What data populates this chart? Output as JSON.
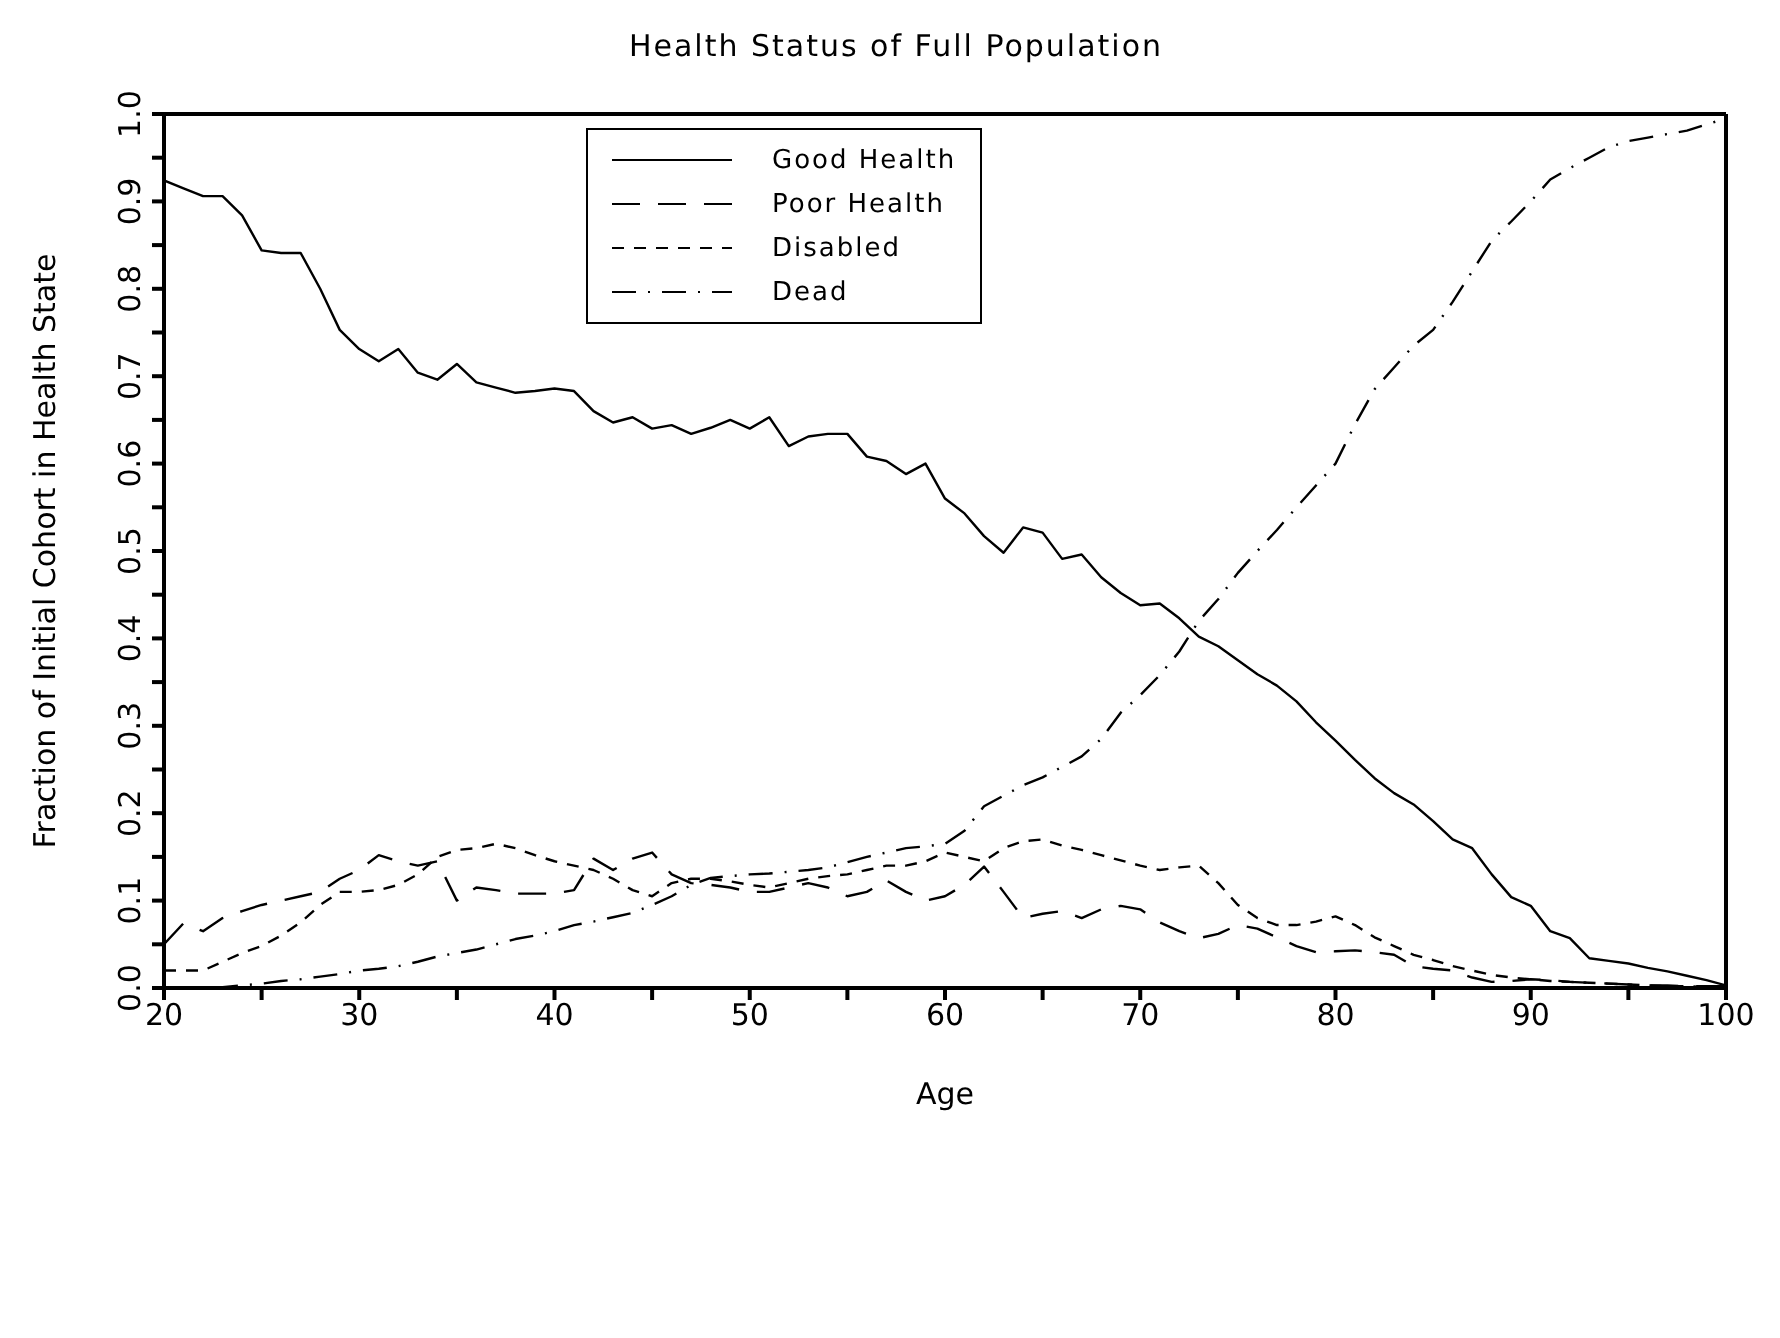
{
  "chart_data": {
    "type": "line",
    "title": "Health Status of Full Population",
    "xlabel": "Age",
    "ylabel": "Fraction of Initial Cohort in Health State",
    "x": [
      20,
      21,
      22,
      23,
      24,
      25,
      26,
      27,
      28,
      29,
      30,
      31,
      32,
      33,
      34,
      35,
      36,
      37,
      38,
      39,
      40,
      41,
      42,
      43,
      44,
      45,
      46,
      47,
      48,
      49,
      50,
      51,
      52,
      53,
      54,
      55,
      56,
      57,
      58,
      59,
      60,
      61,
      62,
      63,
      64,
      65,
      66,
      67,
      68,
      69,
      70,
      71,
      72,
      73,
      74,
      75,
      76,
      77,
      78,
      79,
      80,
      81,
      82,
      83,
      84,
      85,
      86,
      87,
      88,
      89,
      90,
      91,
      92,
      93,
      94,
      95,
      96,
      97,
      98,
      99,
      100
    ],
    "series": [
      {
        "name": "Good Health",
        "color": "#000000",
        "line_style": "solid",
        "values": [
          0.924,
          0.915,
          0.906,
          0.906,
          0.884,
          0.844,
          0.841,
          0.841,
          0.8,
          0.753,
          0.731,
          0.717,
          0.731,
          0.704,
          0.696,
          0.714,
          0.693,
          0.687,
          0.681,
          0.683,
          0.686,
          0.683,
          0.66,
          0.647,
          0.653,
          0.64,
          0.644,
          0.634,
          0.641,
          0.65,
          0.64,
          0.653,
          0.62,
          0.631,
          0.634,
          0.634,
          0.608,
          0.603,
          0.588,
          0.6,
          0.56,
          0.543,
          0.517,
          0.498,
          0.527,
          0.521,
          0.491,
          0.496,
          0.47,
          0.452,
          0.438,
          0.44,
          0.423,
          0.402,
          0.391,
          0.375,
          0.359,
          0.346,
          0.328,
          0.304,
          0.283,
          0.261,
          0.24,
          0.223,
          0.21,
          0.191,
          0.17,
          0.16,
          0.13,
          0.104,
          0.094,
          0.065,
          0.057,
          0.034,
          0.031,
          0.028,
          0.023,
          0.019,
          0.014,
          0.009,
          0.003
        ]
      },
      {
        "name": "Poor Health",
        "color": "#000000",
        "line_style": "longdash",
        "values": [
          0.05,
          0.074,
          0.065,
          0.08,
          0.088,
          0.095,
          0.1,
          0.105,
          0.11,
          0.125,
          0.135,
          0.152,
          0.145,
          0.14,
          0.145,
          0.1,
          0.115,
          0.112,
          0.108,
          0.108,
          0.108,
          0.112,
          0.148,
          0.135,
          0.148,
          0.155,
          0.13,
          0.12,
          0.118,
          0.115,
          0.11,
          0.11,
          0.115,
          0.12,
          0.115,
          0.105,
          0.11,
          0.123,
          0.11,
          0.1,
          0.105,
          0.118,
          0.139,
          0.11,
          0.08,
          0.085,
          0.088,
          0.08,
          0.09,
          0.094,
          0.09,
          0.075,
          0.065,
          0.057,
          0.062,
          0.072,
          0.068,
          0.058,
          0.048,
          0.041,
          0.042,
          0.043,
          0.041,
          0.038,
          0.025,
          0.022,
          0.02,
          0.012,
          0.007,
          0.008,
          0.01,
          0.009,
          0.007,
          0.006,
          0.005,
          0.004,
          0.003,
          0.003,
          0.002,
          0.002,
          0.002
        ]
      },
      {
        "name": "Disabled",
        "color": "#000000",
        "line_style": "dashed",
        "values": [
          0.02,
          0.02,
          0.02,
          0.03,
          0.04,
          0.048,
          0.06,
          0.075,
          0.095,
          0.11,
          0.11,
          0.112,
          0.118,
          0.13,
          0.15,
          0.158,
          0.16,
          0.165,
          0.16,
          0.152,
          0.145,
          0.14,
          0.135,
          0.125,
          0.112,
          0.105,
          0.12,
          0.125,
          0.125,
          0.122,
          0.118,
          0.115,
          0.12,
          0.125,
          0.128,
          0.13,
          0.135,
          0.14,
          0.14,
          0.145,
          0.155,
          0.15,
          0.145,
          0.16,
          0.168,
          0.17,
          0.163,
          0.158,
          0.152,
          0.146,
          0.14,
          0.135,
          0.138,
          0.14,
          0.12,
          0.095,
          0.08,
          0.072,
          0.072,
          0.076,
          0.082,
          0.072,
          0.058,
          0.048,
          0.038,
          0.032,
          0.025,
          0.02,
          0.015,
          0.012,
          0.01,
          0.008,
          0.007,
          0.006,
          0.005,
          0.004,
          0.003,
          0.002,
          0.002,
          0.001,
          0.001
        ]
      },
      {
        "name": "Dead",
        "color": "#000000",
        "line_style": "dashdot",
        "values": [
          0,
          0,
          0,
          0.001,
          0.003,
          0.005,
          0.008,
          0.01,
          0.013,
          0.016,
          0.02,
          0.022,
          0.025,
          0.03,
          0.036,
          0.04,
          0.044,
          0.05,
          0.056,
          0.06,
          0.065,
          0.072,
          0.076,
          0.081,
          0.086,
          0.095,
          0.105,
          0.118,
          0.126,
          0.128,
          0.13,
          0.131,
          0.133,
          0.135,
          0.138,
          0.144,
          0.15,
          0.155,
          0.16,
          0.162,
          0.165,
          0.18,
          0.208,
          0.22,
          0.232,
          0.241,
          0.253,
          0.265,
          0.285,
          0.315,
          0.335,
          0.358,
          0.385,
          0.42,
          0.445,
          0.475,
          0.5,
          0.524,
          0.55,
          0.575,
          0.6,
          0.645,
          0.685,
          0.71,
          0.735,
          0.753,
          0.785,
          0.82,
          0.855,
          0.877,
          0.9,
          0.925,
          0.938,
          0.95,
          0.962,
          0.969,
          0.973,
          0.977,
          0.981,
          0.988,
          0.995
        ]
      }
    ],
    "xlim": [
      20,
      100
    ],
    "xticks": [
      20,
      {
        "value": 25,
        "label": null
      },
      30,
      {
        "value": 35,
        "label": null
      },
      40,
      {
        "value": 45,
        "label": null
      },
      50,
      {
        "value": 55,
        "label": null
      },
      60,
      {
        "value": 65,
        "label": null
      },
      70,
      {
        "value": 75,
        "label": null
      },
      80,
      {
        "value": 85,
        "label": null
      },
      90,
      {
        "value": 95,
        "label": null
      },
      100
    ],
    "ylim": [
      0,
      1
    ],
    "yticks": [
      {
        "value": 0,
        "label": "0.0"
      },
      {
        "value": 0.05,
        "label": null
      },
      {
        "value": 0.1,
        "label": "0.1"
      },
      {
        "value": 0.15,
        "label": null
      },
      {
        "value": 0.2,
        "label": "0.2"
      },
      {
        "value": 0.25,
        "label": null
      },
      {
        "value": 0.3,
        "label": "0.3"
      },
      {
        "value": 0.35,
        "label": null
      },
      {
        "value": 0.4,
        "label": "0.4"
      },
      {
        "value": 0.45,
        "label": null
      },
      {
        "value": 0.5,
        "label": "0.5"
      },
      {
        "value": 0.55,
        "label": null
      },
      {
        "value": 0.6,
        "label": "0.6"
      },
      {
        "value": 0.65,
        "label": null
      },
      {
        "value": 0.7,
        "label": "0.7"
      },
      {
        "value": 0.75,
        "label": null
      },
      {
        "value": 0.8,
        "label": "0.8"
      },
      {
        "value": 0.85,
        "label": null
      },
      {
        "value": 0.9,
        "label": "0.9"
      },
      {
        "value": 0.95,
        "label": null
      },
      {
        "value": 1,
        "label": "1.0"
      }
    ],
    "legend": "top left",
    "marker": "none"
  }
}
